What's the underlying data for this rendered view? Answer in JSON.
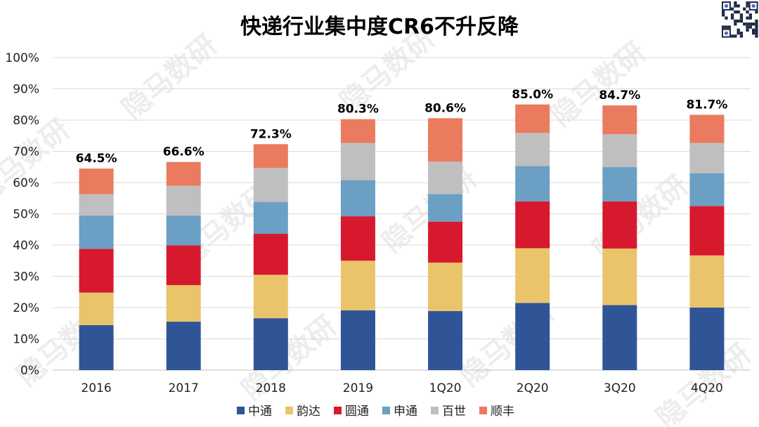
{
  "watermark_text": "隐马数研",
  "chart_data": {
    "type": "bar",
    "stacked": true,
    "title": "快递行业集中度CR6不升反降",
    "categories": [
      "2016",
      "2017",
      "2018",
      "2019",
      "1Q20",
      "2Q20",
      "3Q20",
      "4Q20"
    ],
    "totals": [
      "64.5%",
      "66.6%",
      "72.3%",
      "80.3%",
      "80.6%",
      "85.0%",
      "84.7%",
      "81.7%"
    ],
    "ylim": [
      0,
      100
    ],
    "yticks": [
      "0%",
      "10%",
      "20%",
      "30%",
      "40%",
      "50%",
      "60%",
      "70%",
      "80%",
      "90%",
      "100%"
    ],
    "grid": true,
    "legend_position": "bottom",
    "series": [
      {
        "name": "中通",
        "color": "#2f5597",
        "values": [
          14.4,
          15.5,
          16.6,
          19.1,
          18.9,
          21.5,
          20.8,
          20.0
        ]
      },
      {
        "name": "韵达",
        "color": "#e9c46a",
        "values": [
          10.4,
          11.7,
          13.9,
          15.9,
          15.5,
          17.5,
          18.1,
          16.7
        ]
      },
      {
        "name": "圆通",
        "color": "#d7192e",
        "values": [
          14.0,
          12.7,
          13.1,
          14.2,
          13.1,
          15.0,
          15.1,
          15.8
        ]
      },
      {
        "name": "申通",
        "color": "#6b9fc4",
        "values": [
          10.7,
          9.6,
          10.2,
          11.6,
          8.8,
          11.3,
          11.0,
          10.5
        ]
      },
      {
        "name": "百世",
        "color": "#bfbfbf",
        "values": [
          6.8,
          9.5,
          10.9,
          11.9,
          10.4,
          10.6,
          10.5,
          9.7
        ]
      },
      {
        "name": "顺丰",
        "color": "#ea7b5f",
        "values": [
          8.2,
          7.6,
          7.6,
          7.6,
          13.9,
          9.1,
          9.2,
          9.0
        ]
      }
    ]
  }
}
